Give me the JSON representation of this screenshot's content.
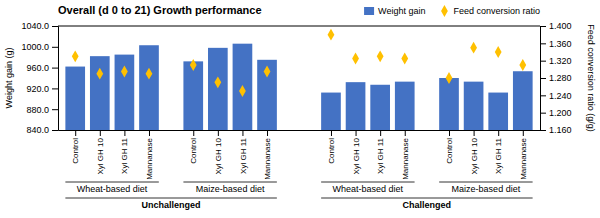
{
  "chart_data": {
    "type": "bar",
    "title": "Overall (d 0 to 21) Growth performance",
    "ylabel": "Weight gain (g)",
    "y2label": "Feed conversion ratio (g/g)",
    "categories": [
      "Control",
      "Xyl GH 10",
      "Xyl GH 11",
      "Mannanase",
      "Control",
      "Xyl GH 10",
      "Xyl GH 11",
      "Mannanase",
      "Control",
      "Xyl GH 10",
      "Xyl GH 11",
      "Mannanase",
      "Control",
      "Xyl GH 10",
      "Xyl GH 11",
      "Mannanase"
    ],
    "group_labels": [
      [
        "Wheat-based diet",
        "Maize-based diet",
        "Wheat-based diet",
        "Maize-based diet"
      ],
      [
        "Unchallenged",
        "Challenged"
      ]
    ],
    "series": [
      {
        "name": "Weight gain",
        "type": "bar",
        "color": "#4472C4",
        "values": [
          962,
          982,
          985,
          1003,
          972,
          998,
          1006,
          975,
          912,
          932,
          927,
          933,
          940,
          933,
          912,
          953
        ]
      },
      {
        "name": "Feed conversion ratio",
        "type": "scatter",
        "axis": "y2",
        "color": "#FFC000",
        "marker": "diamond",
        "values": [
          1.33,
          1.29,
          1.295,
          1.29,
          1.31,
          1.27,
          1.25,
          1.295,
          1.38,
          1.325,
          1.33,
          1.325,
          1.28,
          1.35,
          1.34,
          1.31
        ]
      }
    ],
    "ylim": [
      840,
      1040
    ],
    "yticks": [
      {
        "value": 840,
        "label": "840.0"
      },
      {
        "value": 880,
        "label": "880.0"
      },
      {
        "value": 920,
        "label": "920.0"
      },
      {
        "value": 960,
        "label": "960.0"
      },
      {
        "value": 1000,
        "label": "1000.0"
      },
      {
        "value": 1040,
        "label": "1040.0"
      }
    ],
    "y2lim": [
      1.16,
      1.4
    ],
    "y2ticks": [
      {
        "value": 1.16,
        "label": "1.160"
      },
      {
        "value": 1.2,
        "label": "1.200"
      },
      {
        "value": 1.24,
        "label": "1.240"
      },
      {
        "value": 1.28,
        "label": "1.280"
      },
      {
        "value": 1.32,
        "label": "1.320"
      },
      {
        "value": 1.36,
        "label": "1.360"
      },
      {
        "value": 1.4,
        "label": "1.400"
      }
    ],
    "legend": "upper right"
  }
}
